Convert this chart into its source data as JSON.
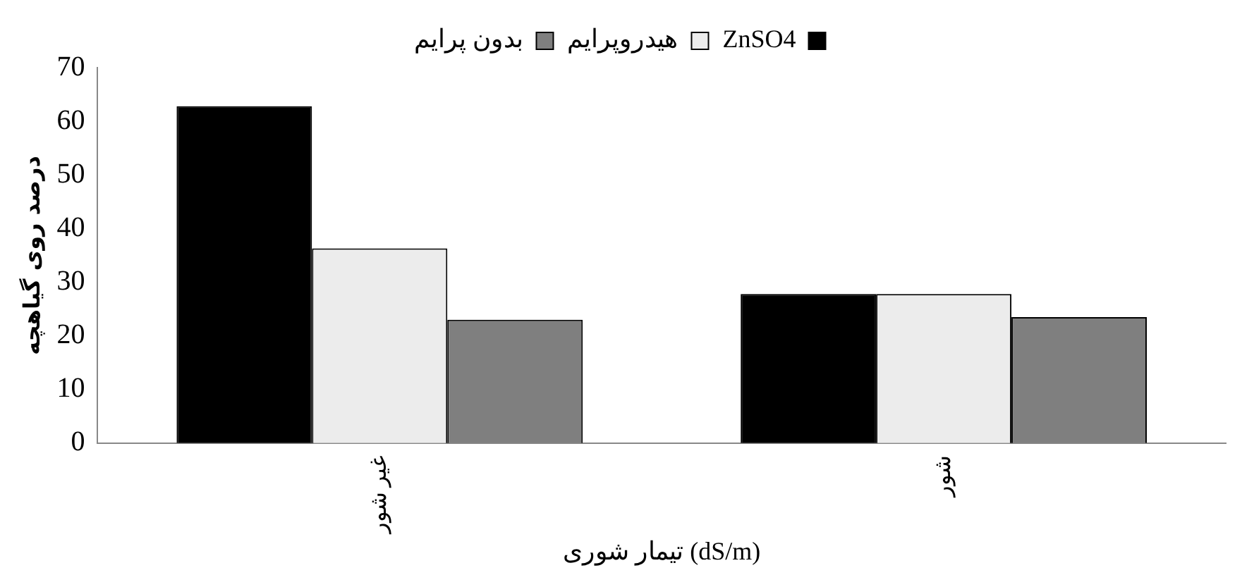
{
  "chart_data": {
    "type": "bar",
    "xlabel": "تیمار شوری (dS/m)",
    "ylabel": "درصد روی گیاهچه",
    "categories": [
      "غیر شور",
      "شور"
    ],
    "series": [
      {
        "name": "ZnSO4",
        "color": "#000000",
        "values": [
          62.8,
          27.8
        ]
      },
      {
        "name": "هیدروپرایم",
        "color": "#ececec",
        "values": [
          36.3,
          27.8
        ]
      },
      {
        "name": "بدون پرایم",
        "color": "#7f7f7f",
        "values": [
          23.0,
          23.5
        ]
      }
    ],
    "ylim": [
      0,
      70
    ],
    "yticks": [
      0,
      10,
      20,
      30,
      40,
      50,
      60,
      70
    ],
    "grid": false,
    "legend": "top"
  }
}
